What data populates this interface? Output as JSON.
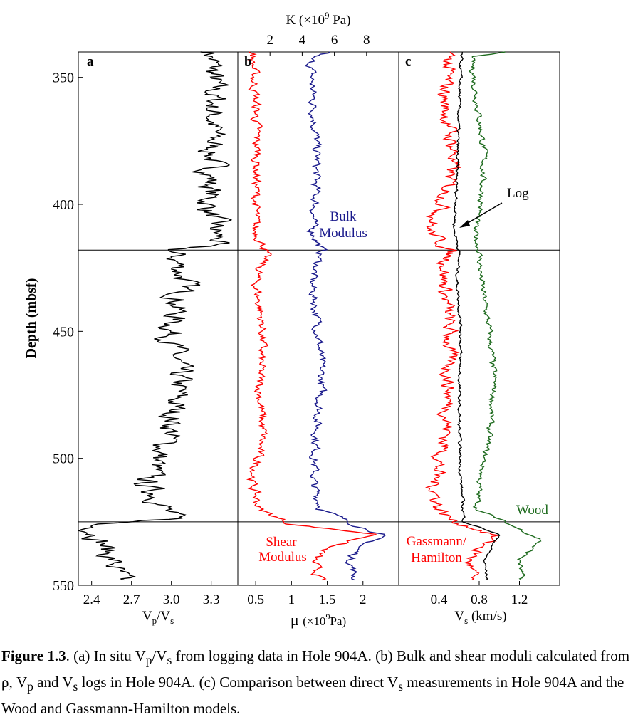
{
  "chart_data": {
    "type": "line",
    "y_axis": {
      "label": "Depth (mbsf)",
      "range": [
        340,
        550
      ],
      "ticks": [
        350,
        400,
        450,
        500,
        550
      ],
      "inverted": true
    },
    "boundaries": [
      418,
      525
    ],
    "panels": [
      {
        "letter": "a",
        "x_axis": {
          "label_main": "V",
          "sub1": "p",
          "sep": "/V",
          "sub2": "s",
          "range": [
            2.3,
            3.5
          ],
          "ticks": [
            "2.4",
            "2.7",
            "3.0",
            "3.3"
          ]
        },
        "series": [
          {
            "color": "#000000",
            "depth": [
              340,
              360,
              380,
              400,
              415,
              418,
              430,
              450,
              470,
              490,
              500,
              510,
              515,
              520,
              524,
              526,
              530,
              540,
              548
            ],
            "values": [
              3.3,
              3.32,
              3.31,
              3.28,
              3.35,
              3.0,
              3.1,
              3.0,
              3.05,
              3.0,
              2.9,
              2.8,
              2.9,
              2.95,
              3.0,
              2.4,
              2.45,
              2.55,
              2.6
            ]
          }
        ]
      },
      {
        "letter": "b",
        "x_axis": {
          "label_main": "μ",
          "label_unit": "(×10",
          "label_exp": "9",
          "label_tail": "Pa)",
          "range": [
            0.25,
            2.5
          ],
          "ticks": [
            "0.5",
            "1",
            "1.5",
            "2"
          ]
        },
        "top_axis": {
          "label_main": "K (×10",
          "label_exp": "9",
          "label_tail": " Pa)",
          "range": [
            0,
            10
          ],
          "ticks": [
            "2",
            "4",
            "6",
            "8"
          ]
        },
        "labels": {
          "bulk_1": "Bulk",
          "bulk_2": "Modulus",
          "shear_1": "Shear",
          "shear_2": "Modulus"
        },
        "series": [
          {
            "name": "Bulk Modulus",
            "color": "#1a1a8c",
            "depth": [
              340,
              342,
              360,
              380,
              400,
              410,
              418,
              430,
              450,
              470,
              490,
              510,
              520,
              526,
              530,
              535,
              540,
              548
            ],
            "values": [
              5.8,
              4.5,
              4.7,
              4.9,
              4.8,
              4.6,
              5.2,
              4.6,
              5.0,
              5.2,
              4.9,
              4.7,
              5.2,
              7.2,
              9.0,
              7.5,
              7.0,
              7.3
            ]
          },
          {
            "name": "Shear Modulus",
            "color": "#ff0000",
            "depth": [
              340,
              360,
              380,
              400,
              410,
              418,
              430,
              450,
              470,
              490,
              510,
              520,
              526,
              530,
              535,
              540,
              548
            ],
            "values": [
              0.45,
              0.5,
              0.52,
              0.5,
              0.48,
              0.65,
              0.5,
              0.6,
              0.55,
              0.6,
              0.45,
              0.55,
              1.0,
              2.2,
              1.5,
              1.3,
              1.4
            ]
          }
        ]
      },
      {
        "letter": "c",
        "x_axis": {
          "label_main": "V",
          "sub1": "s",
          "label_unit": "(km/s)",
          "range": [
            0,
            1.6
          ],
          "ticks": [
            "0.4",
            "0.8",
            "1.2"
          ]
        },
        "labels": {
          "log": "Log",
          "wood": "Wood",
          "gh_1": "Gassmann/",
          "gh_2": "Hamilton"
        },
        "series": [
          {
            "name": "Log",
            "color": "#000000",
            "depth": [
              340,
              360,
              380,
              400,
              410,
              418,
              430,
              450,
              470,
              490,
              510,
              525,
              530,
              540,
              548
            ],
            "values": [
              0.62,
              0.6,
              0.58,
              0.57,
              0.55,
              0.6,
              0.58,
              0.62,
              0.6,
              0.6,
              0.62,
              0.65,
              1.0,
              0.85,
              0.88
            ]
          },
          {
            "name": "Wood",
            "color": "#1e6b1e",
            "depth": [
              340,
              342,
              360,
              380,
              400,
              410,
              418,
              430,
              450,
              470,
              490,
              510,
              520,
              526,
              532,
              540,
              548
            ],
            "values": [
              1.05,
              0.72,
              0.78,
              0.85,
              0.82,
              0.75,
              0.8,
              0.82,
              0.9,
              0.95,
              0.9,
              0.8,
              0.78,
              1.1,
              1.42,
              1.2,
              1.22
            ]
          },
          {
            "name": "Gassmann/Hamilton",
            "color": "#ff0000",
            "depth": [
              340,
              360,
              380,
              400,
              410,
              418,
              430,
              450,
              470,
              490,
              510,
              520,
              525,
              530,
              540,
              548
            ],
            "values": [
              0.5,
              0.45,
              0.55,
              0.45,
              0.3,
              0.5,
              0.45,
              0.5,
              0.5,
              0.48,
              0.35,
              0.4,
              0.55,
              0.95,
              0.7,
              0.72
            ]
          }
        ]
      }
    ]
  },
  "caption": {
    "fig": "Figure 1.3",
    "seg1": ". (a) In situ V",
    "sub_p1": "p",
    "seg2": "/V",
    "sub_s1": "s",
    "seg3": " from logging data in Hole 904A. (b) Bulk and shear moduli calculated from ρ, V",
    "sub_p2": "p",
    "seg4": " and V",
    "sub_s2": "s",
    "seg5": " logs in Hole 904A. (c) Comparison between direct V",
    "sub_s3": "s",
    "seg6": " measurements in Hole 904A and the Wood and Gassmann-Hamilton models."
  }
}
